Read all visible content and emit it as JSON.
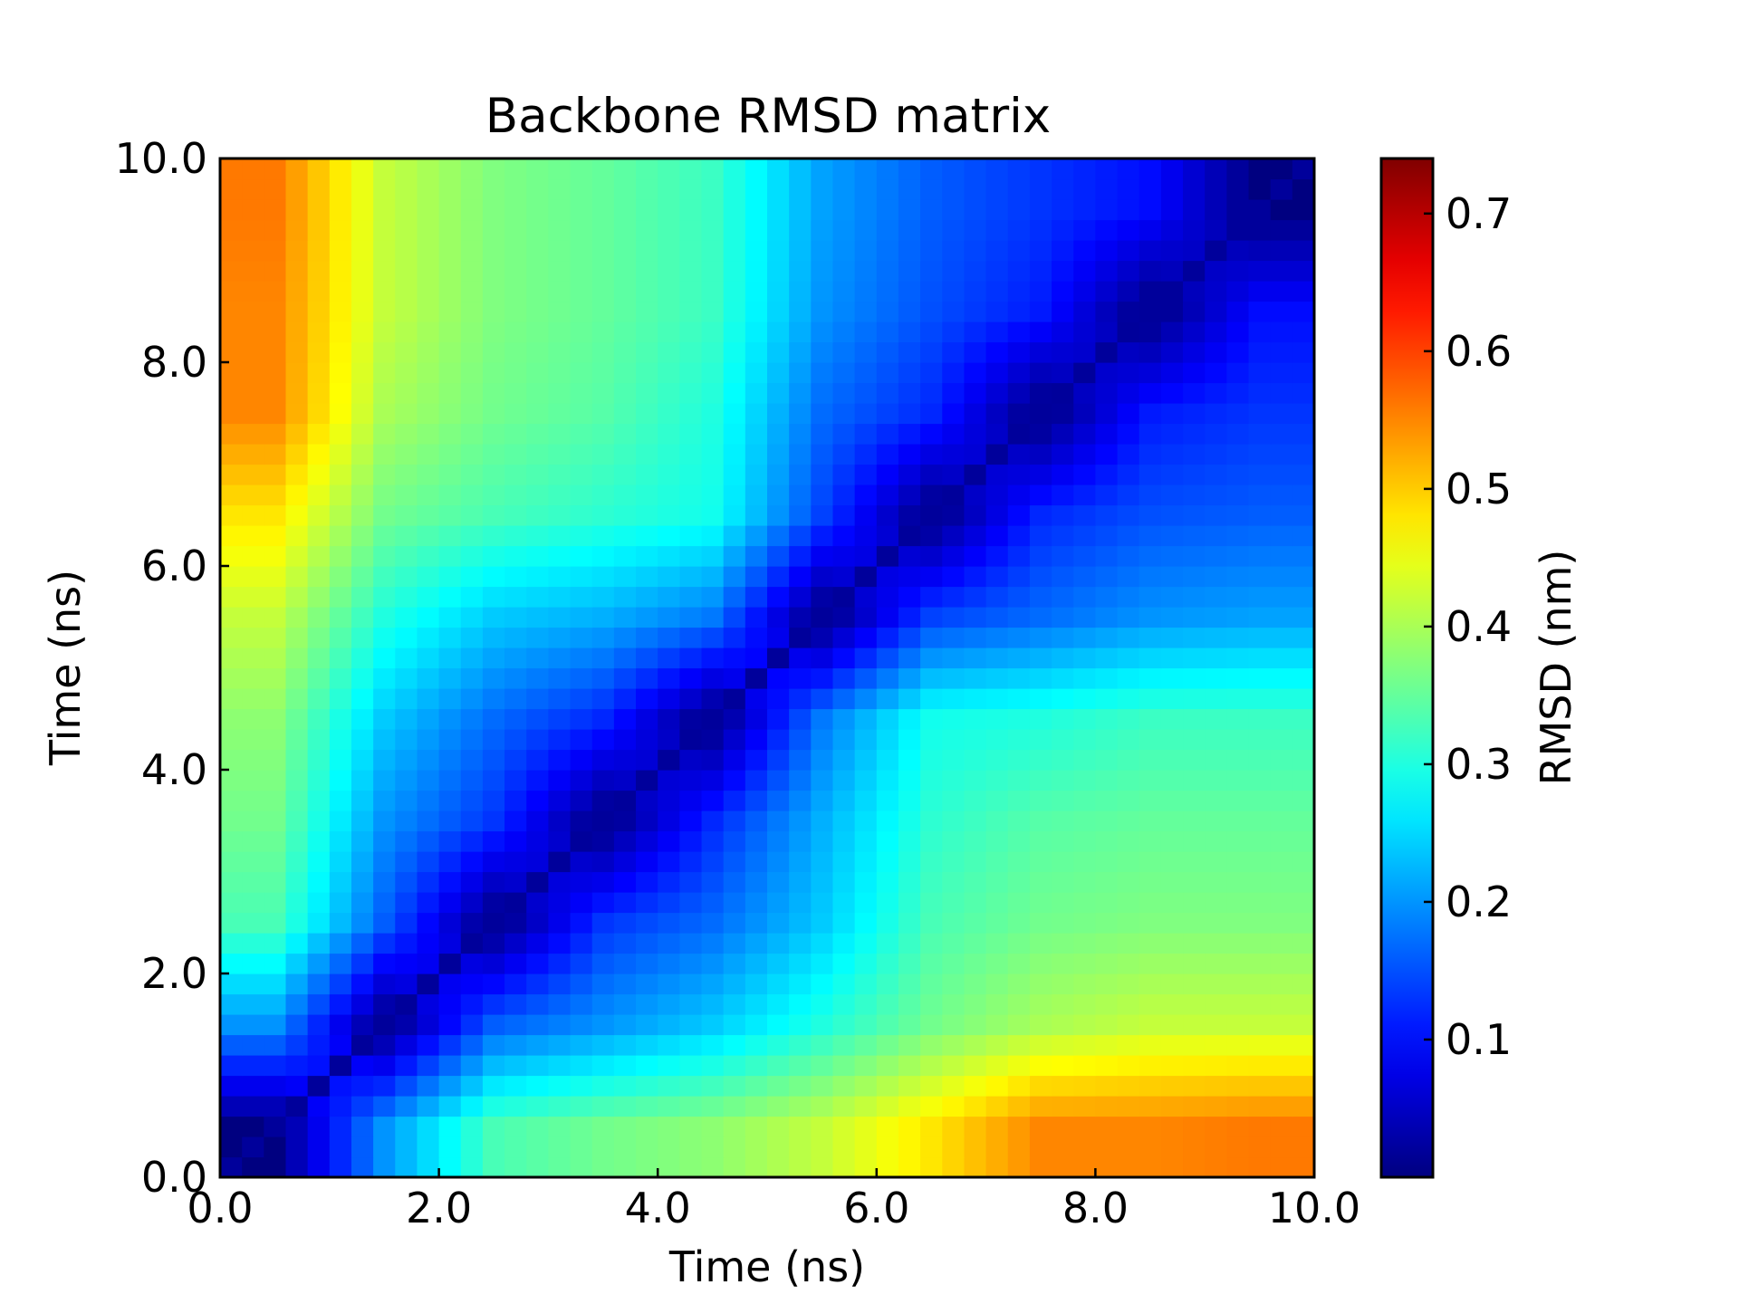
{
  "chart_data": {
    "type": "heatmap",
    "title": "Backbone RMSD matrix",
    "xlabel": "Time (ns)",
    "ylabel": "Time (ns)",
    "xlim": [
      0,
      10
    ],
    "ylim": [
      0,
      10
    ],
    "x_ticks": [
      "0.0",
      "2.0",
      "4.0",
      "6.0",
      "8.0",
      "10.0"
    ],
    "y_ticks": [
      "0.0",
      "2.0",
      "4.0",
      "6.0",
      "8.0",
      "10.0"
    ],
    "colorbar": {
      "label": "RMSD (nm)",
      "colormap": "jet",
      "range": [
        0.0,
        0.74
      ],
      "ticks": [
        "0.1",
        "0.2",
        "0.3",
        "0.4",
        "0.5",
        "0.6",
        "0.7"
      ]
    },
    "grid_ns": [
      0.5,
      1.5,
      2.5,
      3.5,
      4.5,
      5.5,
      6.5,
      7.5,
      8.5,
      9.5
    ],
    "rmsd_nm": [
      [
        0.0,
        0.2,
        0.33,
        0.36,
        0.38,
        0.42,
        0.48,
        0.55,
        0.55,
        0.56
      ],
      [
        0.2,
        0.0,
        0.16,
        0.2,
        0.24,
        0.3,
        0.36,
        0.4,
        0.42,
        0.42
      ],
      [
        0.33,
        0.16,
        0.0,
        0.13,
        0.17,
        0.24,
        0.33,
        0.36,
        0.37,
        0.37
      ],
      [
        0.36,
        0.2,
        0.13,
        0.0,
        0.12,
        0.22,
        0.31,
        0.34,
        0.35,
        0.35
      ],
      [
        0.38,
        0.24,
        0.17,
        0.12,
        0.0,
        0.18,
        0.29,
        0.3,
        0.32,
        0.32
      ],
      [
        0.42,
        0.3,
        0.24,
        0.22,
        0.18,
        0.0,
        0.14,
        0.17,
        0.2,
        0.21
      ],
      [
        0.48,
        0.36,
        0.33,
        0.31,
        0.29,
        0.14,
        0.0,
        0.12,
        0.15,
        0.16
      ],
      [
        0.55,
        0.4,
        0.36,
        0.34,
        0.3,
        0.17,
        0.12,
        0.0,
        0.11,
        0.13
      ],
      [
        0.55,
        0.42,
        0.37,
        0.35,
        0.32,
        0.2,
        0.15,
        0.11,
        0.0,
        0.1
      ],
      [
        0.56,
        0.42,
        0.37,
        0.35,
        0.32,
        0.21,
        0.16,
        0.13,
        0.1,
        0.0
      ]
    ]
  }
}
